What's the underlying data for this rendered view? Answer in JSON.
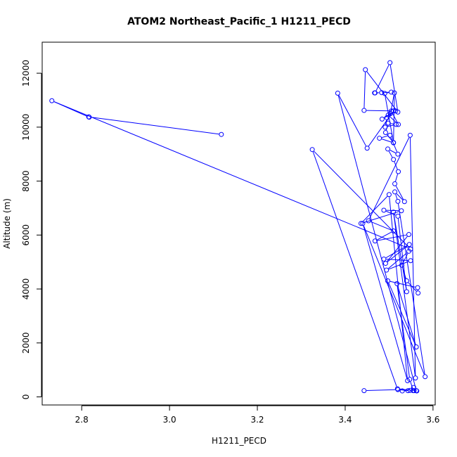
{
  "chart_data": {
    "type": "line",
    "title": "ATOM2 Northeast_Pacific_1 H1211_PECD",
    "xlabel": "H1211_PECD",
    "ylabel": "Altitude (m)",
    "xlim": [
      2.71,
      3.605
    ],
    "ylim": [
      -300,
      13150
    ],
    "xticks": [
      2.8,
      3.0,
      3.2,
      3.4,
      3.6
    ],
    "xtick_labels": [
      "2.8",
      "3.0",
      "3.2",
      "3.4",
      "3.6"
    ],
    "yticks": [
      0,
      2000,
      4000,
      6000,
      8000,
      10000,
      12000
    ],
    "ytick_labels": [
      "0",
      "2000",
      "4000",
      "6000",
      "8000",
      "10000",
      "12000"
    ],
    "grid": false,
    "markers": "open-circle",
    "series": [
      {
        "color": "#0000ff",
        "points": [
          [
            3.443,
            230
          ],
          [
            3.52,
            270
          ],
          [
            3.543,
            230
          ],
          [
            3.53,
            220
          ],
          [
            3.548,
            240
          ],
          [
            3.557,
            230
          ],
          [
            3.563,
            220
          ],
          [
            3.556,
            350
          ],
          [
            3.555,
            230
          ],
          [
            3.547,
            650
          ],
          [
            3.518,
            4200
          ],
          [
            3.562,
            1850
          ],
          [
            3.497,
            4300
          ],
          [
            3.565,
            4050
          ],
          [
            3.566,
            3850
          ],
          [
            3.54,
            4300
          ],
          [
            3.529,
            4880
          ],
          [
            3.545,
            5400
          ],
          [
            3.494,
            4700
          ],
          [
            3.549,
            5050
          ],
          [
            3.488,
            5110
          ],
          [
            3.546,
            5650
          ],
          [
            3.492,
            4950
          ],
          [
            3.545,
            6020
          ],
          [
            3.468,
            5780
          ],
          [
            3.51,
            6150
          ],
          [
            3.453,
            6530
          ],
          [
            3.548,
            9700
          ],
          [
            3.56,
            700
          ],
          [
            3.51,
            6850
          ],
          [
            3.54,
            3900
          ],
          [
            3.52,
            6700
          ],
          [
            3.488,
            6920
          ],
          [
            3.528,
            6900
          ],
          [
            3.436,
            6430
          ],
          [
            3.5,
            7500
          ],
          [
            3.542,
            600
          ],
          [
            3.44,
            6430
          ],
          [
            3.582,
            750
          ],
          [
            3.52,
            7250
          ],
          [
            3.513,
            7600
          ],
          [
            3.535,
            7240
          ],
          [
            3.513,
            7900
          ],
          [
            3.521,
            8350
          ],
          [
            3.51,
            8800
          ],
          [
            3.497,
            9190
          ],
          [
            3.52,
            9000
          ],
          [
            3.502,
            9700
          ],
          [
            3.478,
            9590
          ],
          [
            3.51,
            9420
          ],
          [
            3.492,
            9800
          ],
          [
            3.498,
            10150
          ],
          [
            3.516,
            10100
          ],
          [
            3.491,
            10000
          ],
          [
            3.495,
            10350
          ],
          [
            3.505,
            10600
          ],
          [
            3.521,
            10100
          ],
          [
            3.498,
            10450
          ],
          [
            3.515,
            10600
          ],
          [
            3.484,
            10300
          ],
          [
            3.503,
            10500
          ],
          [
            3.512,
            11270
          ],
          [
            3.51,
            9430
          ],
          [
            3.49,
            11250
          ],
          [
            3.505,
            11300
          ],
          [
            3.483,
            11280
          ],
          [
            3.467,
            11270
          ],
          [
            3.468,
            11270
          ],
          [
            3.502,
            12390
          ],
          [
            3.52,
            10560
          ],
          [
            3.446,
            12130
          ],
          [
            3.443,
            10620
          ],
          [
            3.51,
            10600
          ],
          [
            3.45,
            9220
          ],
          [
            3.383,
            11260
          ],
          [
            3.562,
            230
          ],
          [
            3.519,
            300
          ],
          [
            3.325,
            9170
          ],
          [
            3.549,
            5480
          ],
          [
            2.732,
            10980
          ],
          [
            2.817,
            10370
          ],
          [
            2.816,
            10380
          ],
          [
            3.118,
            9730
          ]
        ]
      }
    ]
  }
}
